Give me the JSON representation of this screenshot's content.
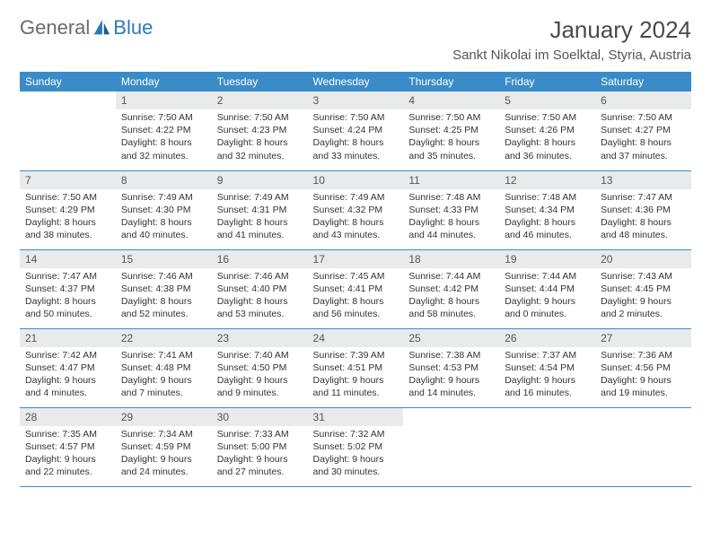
{
  "logo": {
    "text1": "General",
    "text2": "Blue"
  },
  "title": "January 2024",
  "location": "Sankt Nikolai im Soelktal, Styria, Austria",
  "colors": {
    "header_bg": "#3b8bc9",
    "header_text": "#ffffff",
    "daynum_bg": "#e9eaeb",
    "daynum_text": "#555555",
    "body_text": "#333333",
    "rule": "#3b8bc9",
    "logo_gray": "#6a6a6a",
    "logo_blue": "#2a7ab9",
    "background": "#ffffff"
  },
  "typography": {
    "title_fontsize": 26,
    "location_fontsize": 15,
    "header_fontsize": 12,
    "daynum_fontsize": 12,
    "details_fontsize": 10.5
  },
  "weekdays": [
    "Sunday",
    "Monday",
    "Tuesday",
    "Wednesday",
    "Thursday",
    "Friday",
    "Saturday"
  ],
  "weeks": [
    [
      {
        "day": "",
        "lines": []
      },
      {
        "day": "1",
        "lines": [
          "Sunrise: 7:50 AM",
          "Sunset: 4:22 PM",
          "Daylight: 8 hours",
          "and 32 minutes."
        ]
      },
      {
        "day": "2",
        "lines": [
          "Sunrise: 7:50 AM",
          "Sunset: 4:23 PM",
          "Daylight: 8 hours",
          "and 32 minutes."
        ]
      },
      {
        "day": "3",
        "lines": [
          "Sunrise: 7:50 AM",
          "Sunset: 4:24 PM",
          "Daylight: 8 hours",
          "and 33 minutes."
        ]
      },
      {
        "day": "4",
        "lines": [
          "Sunrise: 7:50 AM",
          "Sunset: 4:25 PM",
          "Daylight: 8 hours",
          "and 35 minutes."
        ]
      },
      {
        "day": "5",
        "lines": [
          "Sunrise: 7:50 AM",
          "Sunset: 4:26 PM",
          "Daylight: 8 hours",
          "and 36 minutes."
        ]
      },
      {
        "day": "6",
        "lines": [
          "Sunrise: 7:50 AM",
          "Sunset: 4:27 PM",
          "Daylight: 8 hours",
          "and 37 minutes."
        ]
      }
    ],
    [
      {
        "day": "7",
        "lines": [
          "Sunrise: 7:50 AM",
          "Sunset: 4:29 PM",
          "Daylight: 8 hours",
          "and 38 minutes."
        ]
      },
      {
        "day": "8",
        "lines": [
          "Sunrise: 7:49 AM",
          "Sunset: 4:30 PM",
          "Daylight: 8 hours",
          "and 40 minutes."
        ]
      },
      {
        "day": "9",
        "lines": [
          "Sunrise: 7:49 AM",
          "Sunset: 4:31 PM",
          "Daylight: 8 hours",
          "and 41 minutes."
        ]
      },
      {
        "day": "10",
        "lines": [
          "Sunrise: 7:49 AM",
          "Sunset: 4:32 PM",
          "Daylight: 8 hours",
          "and 43 minutes."
        ]
      },
      {
        "day": "11",
        "lines": [
          "Sunrise: 7:48 AM",
          "Sunset: 4:33 PM",
          "Daylight: 8 hours",
          "and 44 minutes."
        ]
      },
      {
        "day": "12",
        "lines": [
          "Sunrise: 7:48 AM",
          "Sunset: 4:34 PM",
          "Daylight: 8 hours",
          "and 46 minutes."
        ]
      },
      {
        "day": "13",
        "lines": [
          "Sunrise: 7:47 AM",
          "Sunset: 4:36 PM",
          "Daylight: 8 hours",
          "and 48 minutes."
        ]
      }
    ],
    [
      {
        "day": "14",
        "lines": [
          "Sunrise: 7:47 AM",
          "Sunset: 4:37 PM",
          "Daylight: 8 hours",
          "and 50 minutes."
        ]
      },
      {
        "day": "15",
        "lines": [
          "Sunrise: 7:46 AM",
          "Sunset: 4:38 PM",
          "Daylight: 8 hours",
          "and 52 minutes."
        ]
      },
      {
        "day": "16",
        "lines": [
          "Sunrise: 7:46 AM",
          "Sunset: 4:40 PM",
          "Daylight: 8 hours",
          "and 53 minutes."
        ]
      },
      {
        "day": "17",
        "lines": [
          "Sunrise: 7:45 AM",
          "Sunset: 4:41 PM",
          "Daylight: 8 hours",
          "and 56 minutes."
        ]
      },
      {
        "day": "18",
        "lines": [
          "Sunrise: 7:44 AM",
          "Sunset: 4:42 PM",
          "Daylight: 8 hours",
          "and 58 minutes."
        ]
      },
      {
        "day": "19",
        "lines": [
          "Sunrise: 7:44 AM",
          "Sunset: 4:44 PM",
          "Daylight: 9 hours",
          "and 0 minutes."
        ]
      },
      {
        "day": "20",
        "lines": [
          "Sunrise: 7:43 AM",
          "Sunset: 4:45 PM",
          "Daylight: 9 hours",
          "and 2 minutes."
        ]
      }
    ],
    [
      {
        "day": "21",
        "lines": [
          "Sunrise: 7:42 AM",
          "Sunset: 4:47 PM",
          "Daylight: 9 hours",
          "and 4 minutes."
        ]
      },
      {
        "day": "22",
        "lines": [
          "Sunrise: 7:41 AM",
          "Sunset: 4:48 PM",
          "Daylight: 9 hours",
          "and 7 minutes."
        ]
      },
      {
        "day": "23",
        "lines": [
          "Sunrise: 7:40 AM",
          "Sunset: 4:50 PM",
          "Daylight: 9 hours",
          "and 9 minutes."
        ]
      },
      {
        "day": "24",
        "lines": [
          "Sunrise: 7:39 AM",
          "Sunset: 4:51 PM",
          "Daylight: 9 hours",
          "and 11 minutes."
        ]
      },
      {
        "day": "25",
        "lines": [
          "Sunrise: 7:38 AM",
          "Sunset: 4:53 PM",
          "Daylight: 9 hours",
          "and 14 minutes."
        ]
      },
      {
        "day": "26",
        "lines": [
          "Sunrise: 7:37 AM",
          "Sunset: 4:54 PM",
          "Daylight: 9 hours",
          "and 16 minutes."
        ]
      },
      {
        "day": "27",
        "lines": [
          "Sunrise: 7:36 AM",
          "Sunset: 4:56 PM",
          "Daylight: 9 hours",
          "and 19 minutes."
        ]
      }
    ],
    [
      {
        "day": "28",
        "lines": [
          "Sunrise: 7:35 AM",
          "Sunset: 4:57 PM",
          "Daylight: 9 hours",
          "and 22 minutes."
        ]
      },
      {
        "day": "29",
        "lines": [
          "Sunrise: 7:34 AM",
          "Sunset: 4:59 PM",
          "Daylight: 9 hours",
          "and 24 minutes."
        ]
      },
      {
        "day": "30",
        "lines": [
          "Sunrise: 7:33 AM",
          "Sunset: 5:00 PM",
          "Daylight: 9 hours",
          "and 27 minutes."
        ]
      },
      {
        "day": "31",
        "lines": [
          "Sunrise: 7:32 AM",
          "Sunset: 5:02 PM",
          "Daylight: 9 hours",
          "and 30 minutes."
        ]
      },
      {
        "day": "",
        "lines": []
      },
      {
        "day": "",
        "lines": []
      },
      {
        "day": "",
        "lines": []
      }
    ]
  ]
}
